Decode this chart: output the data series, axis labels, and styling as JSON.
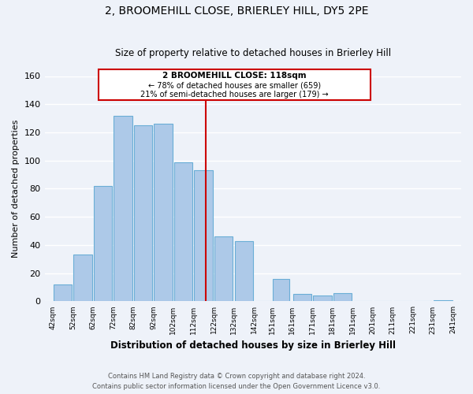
{
  "title": "2, BROOMEHILL CLOSE, BRIERLEY HILL, DY5 2PE",
  "subtitle": "Size of property relative to detached houses in Brierley Hill",
  "xlabel": "Distribution of detached houses by size in Brierley Hill",
  "ylabel": "Number of detached properties",
  "bar_left_edges": [
    42,
    52,
    62,
    72,
    82,
    92,
    102,
    112,
    122,
    132,
    142,
    151,
    161,
    171,
    181,
    191,
    201,
    211,
    221,
    231
  ],
  "bar_widths": [
    10,
    10,
    10,
    10,
    10,
    10,
    10,
    10,
    10,
    10,
    10,
    9,
    10,
    10,
    10,
    10,
    10,
    10,
    10,
    10
  ],
  "bar_heights": [
    12,
    33,
    82,
    132,
    125,
    126,
    99,
    93,
    46,
    43,
    0,
    16,
    5,
    4,
    6,
    0,
    0,
    0,
    0,
    1
  ],
  "bar_color": "#adc9e8",
  "bar_edge_color": "#6aaed6",
  "tick_labels": [
    "42sqm",
    "52sqm",
    "62sqm",
    "72sqm",
    "82sqm",
    "92sqm",
    "102sqm",
    "112sqm",
    "122sqm",
    "132sqm",
    "142sqm",
    "151sqm",
    "161sqm",
    "171sqm",
    "181sqm",
    "191sqm",
    "201sqm",
    "211sqm",
    "221sqm",
    "231sqm",
    "241sqm"
  ],
  "ylim": [
    0,
    160
  ],
  "yticks": [
    0,
    20,
    40,
    60,
    80,
    100,
    120,
    140,
    160
  ],
  "vline_x": 118,
  "vline_color": "#cc0000",
  "annotation_title": "2 BROOMEHILL CLOSE: 118sqm",
  "annotation_line1": "← 78% of detached houses are smaller (659)",
  "annotation_line2": "21% of semi-detached houses are larger (179) →",
  "annotation_box_color": "#cc0000",
  "annotation_fill": "#ffffff",
  "footer_line1": "Contains HM Land Registry data © Crown copyright and database right 2024.",
  "footer_line2": "Contains public sector information licensed under the Open Government Licence v3.0.",
  "bg_color": "#eef2f9",
  "plot_bg_color": "#eef2f9",
  "grid_color": "#ffffff"
}
